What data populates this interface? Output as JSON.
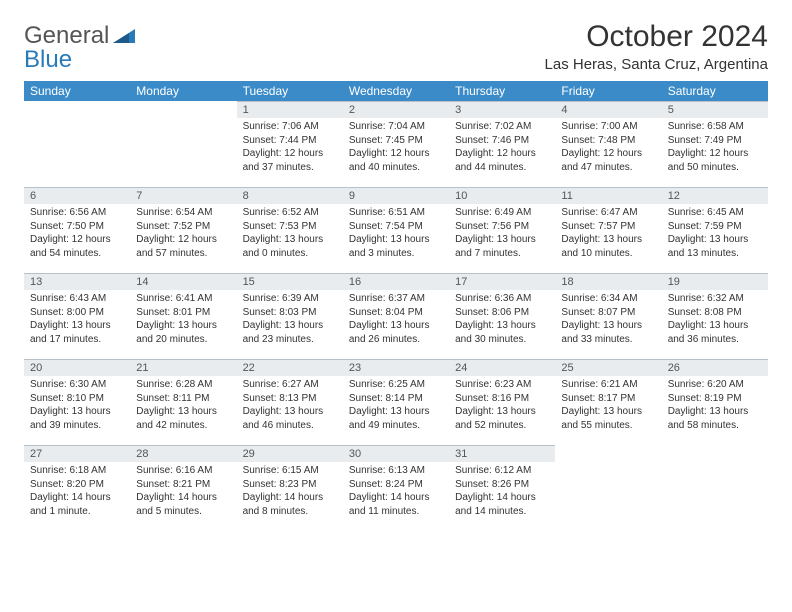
{
  "logo": {
    "word1": "General",
    "word2": "Blue"
  },
  "title": "October 2024",
  "location": "Las Heras, Santa Cruz, Argentina",
  "header_bg": "#3b8bc8",
  "daynum_bg": "#e8ecef",
  "weekdays": [
    "Sunday",
    "Monday",
    "Tuesday",
    "Wednesday",
    "Thursday",
    "Friday",
    "Saturday"
  ],
  "weeks": [
    [
      {
        "n": "",
        "sr": "",
        "ss": "",
        "dl": ""
      },
      {
        "n": "",
        "sr": "",
        "ss": "",
        "dl": ""
      },
      {
        "n": "1",
        "sr": "Sunrise: 7:06 AM",
        "ss": "Sunset: 7:44 PM",
        "dl": "Daylight: 12 hours and 37 minutes."
      },
      {
        "n": "2",
        "sr": "Sunrise: 7:04 AM",
        "ss": "Sunset: 7:45 PM",
        "dl": "Daylight: 12 hours and 40 minutes."
      },
      {
        "n": "3",
        "sr": "Sunrise: 7:02 AM",
        "ss": "Sunset: 7:46 PM",
        "dl": "Daylight: 12 hours and 44 minutes."
      },
      {
        "n": "4",
        "sr": "Sunrise: 7:00 AM",
        "ss": "Sunset: 7:48 PM",
        "dl": "Daylight: 12 hours and 47 minutes."
      },
      {
        "n": "5",
        "sr": "Sunrise: 6:58 AM",
        "ss": "Sunset: 7:49 PM",
        "dl": "Daylight: 12 hours and 50 minutes."
      }
    ],
    [
      {
        "n": "6",
        "sr": "Sunrise: 6:56 AM",
        "ss": "Sunset: 7:50 PM",
        "dl": "Daylight: 12 hours and 54 minutes."
      },
      {
        "n": "7",
        "sr": "Sunrise: 6:54 AM",
        "ss": "Sunset: 7:52 PM",
        "dl": "Daylight: 12 hours and 57 minutes."
      },
      {
        "n": "8",
        "sr": "Sunrise: 6:52 AM",
        "ss": "Sunset: 7:53 PM",
        "dl": "Daylight: 13 hours and 0 minutes."
      },
      {
        "n": "9",
        "sr": "Sunrise: 6:51 AM",
        "ss": "Sunset: 7:54 PM",
        "dl": "Daylight: 13 hours and 3 minutes."
      },
      {
        "n": "10",
        "sr": "Sunrise: 6:49 AM",
        "ss": "Sunset: 7:56 PM",
        "dl": "Daylight: 13 hours and 7 minutes."
      },
      {
        "n": "11",
        "sr": "Sunrise: 6:47 AM",
        "ss": "Sunset: 7:57 PM",
        "dl": "Daylight: 13 hours and 10 minutes."
      },
      {
        "n": "12",
        "sr": "Sunrise: 6:45 AM",
        "ss": "Sunset: 7:59 PM",
        "dl": "Daylight: 13 hours and 13 minutes."
      }
    ],
    [
      {
        "n": "13",
        "sr": "Sunrise: 6:43 AM",
        "ss": "Sunset: 8:00 PM",
        "dl": "Daylight: 13 hours and 17 minutes."
      },
      {
        "n": "14",
        "sr": "Sunrise: 6:41 AM",
        "ss": "Sunset: 8:01 PM",
        "dl": "Daylight: 13 hours and 20 minutes."
      },
      {
        "n": "15",
        "sr": "Sunrise: 6:39 AM",
        "ss": "Sunset: 8:03 PM",
        "dl": "Daylight: 13 hours and 23 minutes."
      },
      {
        "n": "16",
        "sr": "Sunrise: 6:37 AM",
        "ss": "Sunset: 8:04 PM",
        "dl": "Daylight: 13 hours and 26 minutes."
      },
      {
        "n": "17",
        "sr": "Sunrise: 6:36 AM",
        "ss": "Sunset: 8:06 PM",
        "dl": "Daylight: 13 hours and 30 minutes."
      },
      {
        "n": "18",
        "sr": "Sunrise: 6:34 AM",
        "ss": "Sunset: 8:07 PM",
        "dl": "Daylight: 13 hours and 33 minutes."
      },
      {
        "n": "19",
        "sr": "Sunrise: 6:32 AM",
        "ss": "Sunset: 8:08 PM",
        "dl": "Daylight: 13 hours and 36 minutes."
      }
    ],
    [
      {
        "n": "20",
        "sr": "Sunrise: 6:30 AM",
        "ss": "Sunset: 8:10 PM",
        "dl": "Daylight: 13 hours and 39 minutes."
      },
      {
        "n": "21",
        "sr": "Sunrise: 6:28 AM",
        "ss": "Sunset: 8:11 PM",
        "dl": "Daylight: 13 hours and 42 minutes."
      },
      {
        "n": "22",
        "sr": "Sunrise: 6:27 AM",
        "ss": "Sunset: 8:13 PM",
        "dl": "Daylight: 13 hours and 46 minutes."
      },
      {
        "n": "23",
        "sr": "Sunrise: 6:25 AM",
        "ss": "Sunset: 8:14 PM",
        "dl": "Daylight: 13 hours and 49 minutes."
      },
      {
        "n": "24",
        "sr": "Sunrise: 6:23 AM",
        "ss": "Sunset: 8:16 PM",
        "dl": "Daylight: 13 hours and 52 minutes."
      },
      {
        "n": "25",
        "sr": "Sunrise: 6:21 AM",
        "ss": "Sunset: 8:17 PM",
        "dl": "Daylight: 13 hours and 55 minutes."
      },
      {
        "n": "26",
        "sr": "Sunrise: 6:20 AM",
        "ss": "Sunset: 8:19 PM",
        "dl": "Daylight: 13 hours and 58 minutes."
      }
    ],
    [
      {
        "n": "27",
        "sr": "Sunrise: 6:18 AM",
        "ss": "Sunset: 8:20 PM",
        "dl": "Daylight: 14 hours and 1 minute."
      },
      {
        "n": "28",
        "sr": "Sunrise: 6:16 AM",
        "ss": "Sunset: 8:21 PM",
        "dl": "Daylight: 14 hours and 5 minutes."
      },
      {
        "n": "29",
        "sr": "Sunrise: 6:15 AM",
        "ss": "Sunset: 8:23 PM",
        "dl": "Daylight: 14 hours and 8 minutes."
      },
      {
        "n": "30",
        "sr": "Sunrise: 6:13 AM",
        "ss": "Sunset: 8:24 PM",
        "dl": "Daylight: 14 hours and 11 minutes."
      },
      {
        "n": "31",
        "sr": "Sunrise: 6:12 AM",
        "ss": "Sunset: 8:26 PM",
        "dl": "Daylight: 14 hours and 14 minutes."
      },
      {
        "n": "",
        "sr": "",
        "ss": "",
        "dl": ""
      },
      {
        "n": "",
        "sr": "",
        "ss": "",
        "dl": ""
      }
    ]
  ]
}
